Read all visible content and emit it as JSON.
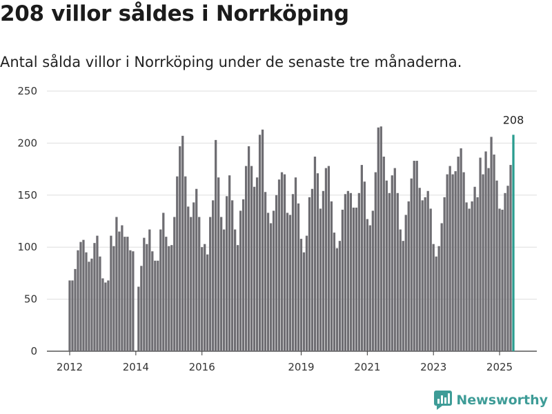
{
  "header": {
    "title": "208 villor såldes i Norrköping",
    "subtitle": "Antal sålda villor i Norrköping under de senaste tre månaderna."
  },
  "brand": {
    "name": "Newsworthy",
    "color": "#3e9c97"
  },
  "chart_data": {
    "type": "bar",
    "title": "208 villor såldes i Norrköping",
    "subtitle": "Antal sålda villor i Norrköping under de senaste tre månaderna.",
    "xlabel": "",
    "ylabel": "",
    "ylim": [
      0,
      250
    ],
    "y_ticks": [
      0,
      50,
      100,
      150,
      200,
      250
    ],
    "x_ticks": [
      "2012",
      "2014",
      "2016",
      "2019",
      "2021",
      "2023",
      "2025"
    ],
    "grid": true,
    "bar_color": "#6e6d72",
    "highlight_color": "#2a9d8f",
    "highlight_label": "208",
    "values": [
      68,
      68,
      79,
      97,
      105,
      107,
      95,
      86,
      89,
      104,
      111,
      91,
      70,
      66,
      68,
      111,
      101,
      129,
      115,
      121,
      110,
      110,
      97,
      96,
      0,
      62,
      82,
      109,
      103,
      117,
      96,
      87,
      87,
      117,
      133,
      110,
      101,
      102,
      129,
      168,
      197,
      207,
      168,
      139,
      129,
      143,
      156,
      129,
      100,
      103,
      93,
      129,
      145,
      203,
      167,
      129,
      117,
      149,
      169,
      145,
      117,
      102,
      135,
      146,
      178,
      197,
      178,
      158,
      167,
      208,
      213,
      153,
      133,
      123,
      135,
      150,
      165,
      172,
      170,
      133,
      131,
      151,
      167,
      142,
      108,
      95,
      111,
      148,
      156,
      187,
      171,
      137,
      154,
      176,
      178,
      144,
      114,
      99,
      106,
      136,
      151,
      154,
      152,
      138,
      138,
      152,
      179,
      163,
      127,
      121,
      135,
      172,
      215,
      216,
      187,
      164,
      152,
      169,
      176,
      152,
      117,
      106,
      131,
      144,
      166,
      183,
      183,
      157,
      145,
      148,
      154,
      137,
      103,
      91,
      101,
      123,
      148,
      170,
      178,
      170,
      173,
      187,
      195,
      172,
      143,
      137,
      144,
      158,
      148,
      186,
      170,
      192,
      176,
      206,
      189,
      164,
      137,
      136,
      152,
      159,
      179,
      208
    ]
  }
}
